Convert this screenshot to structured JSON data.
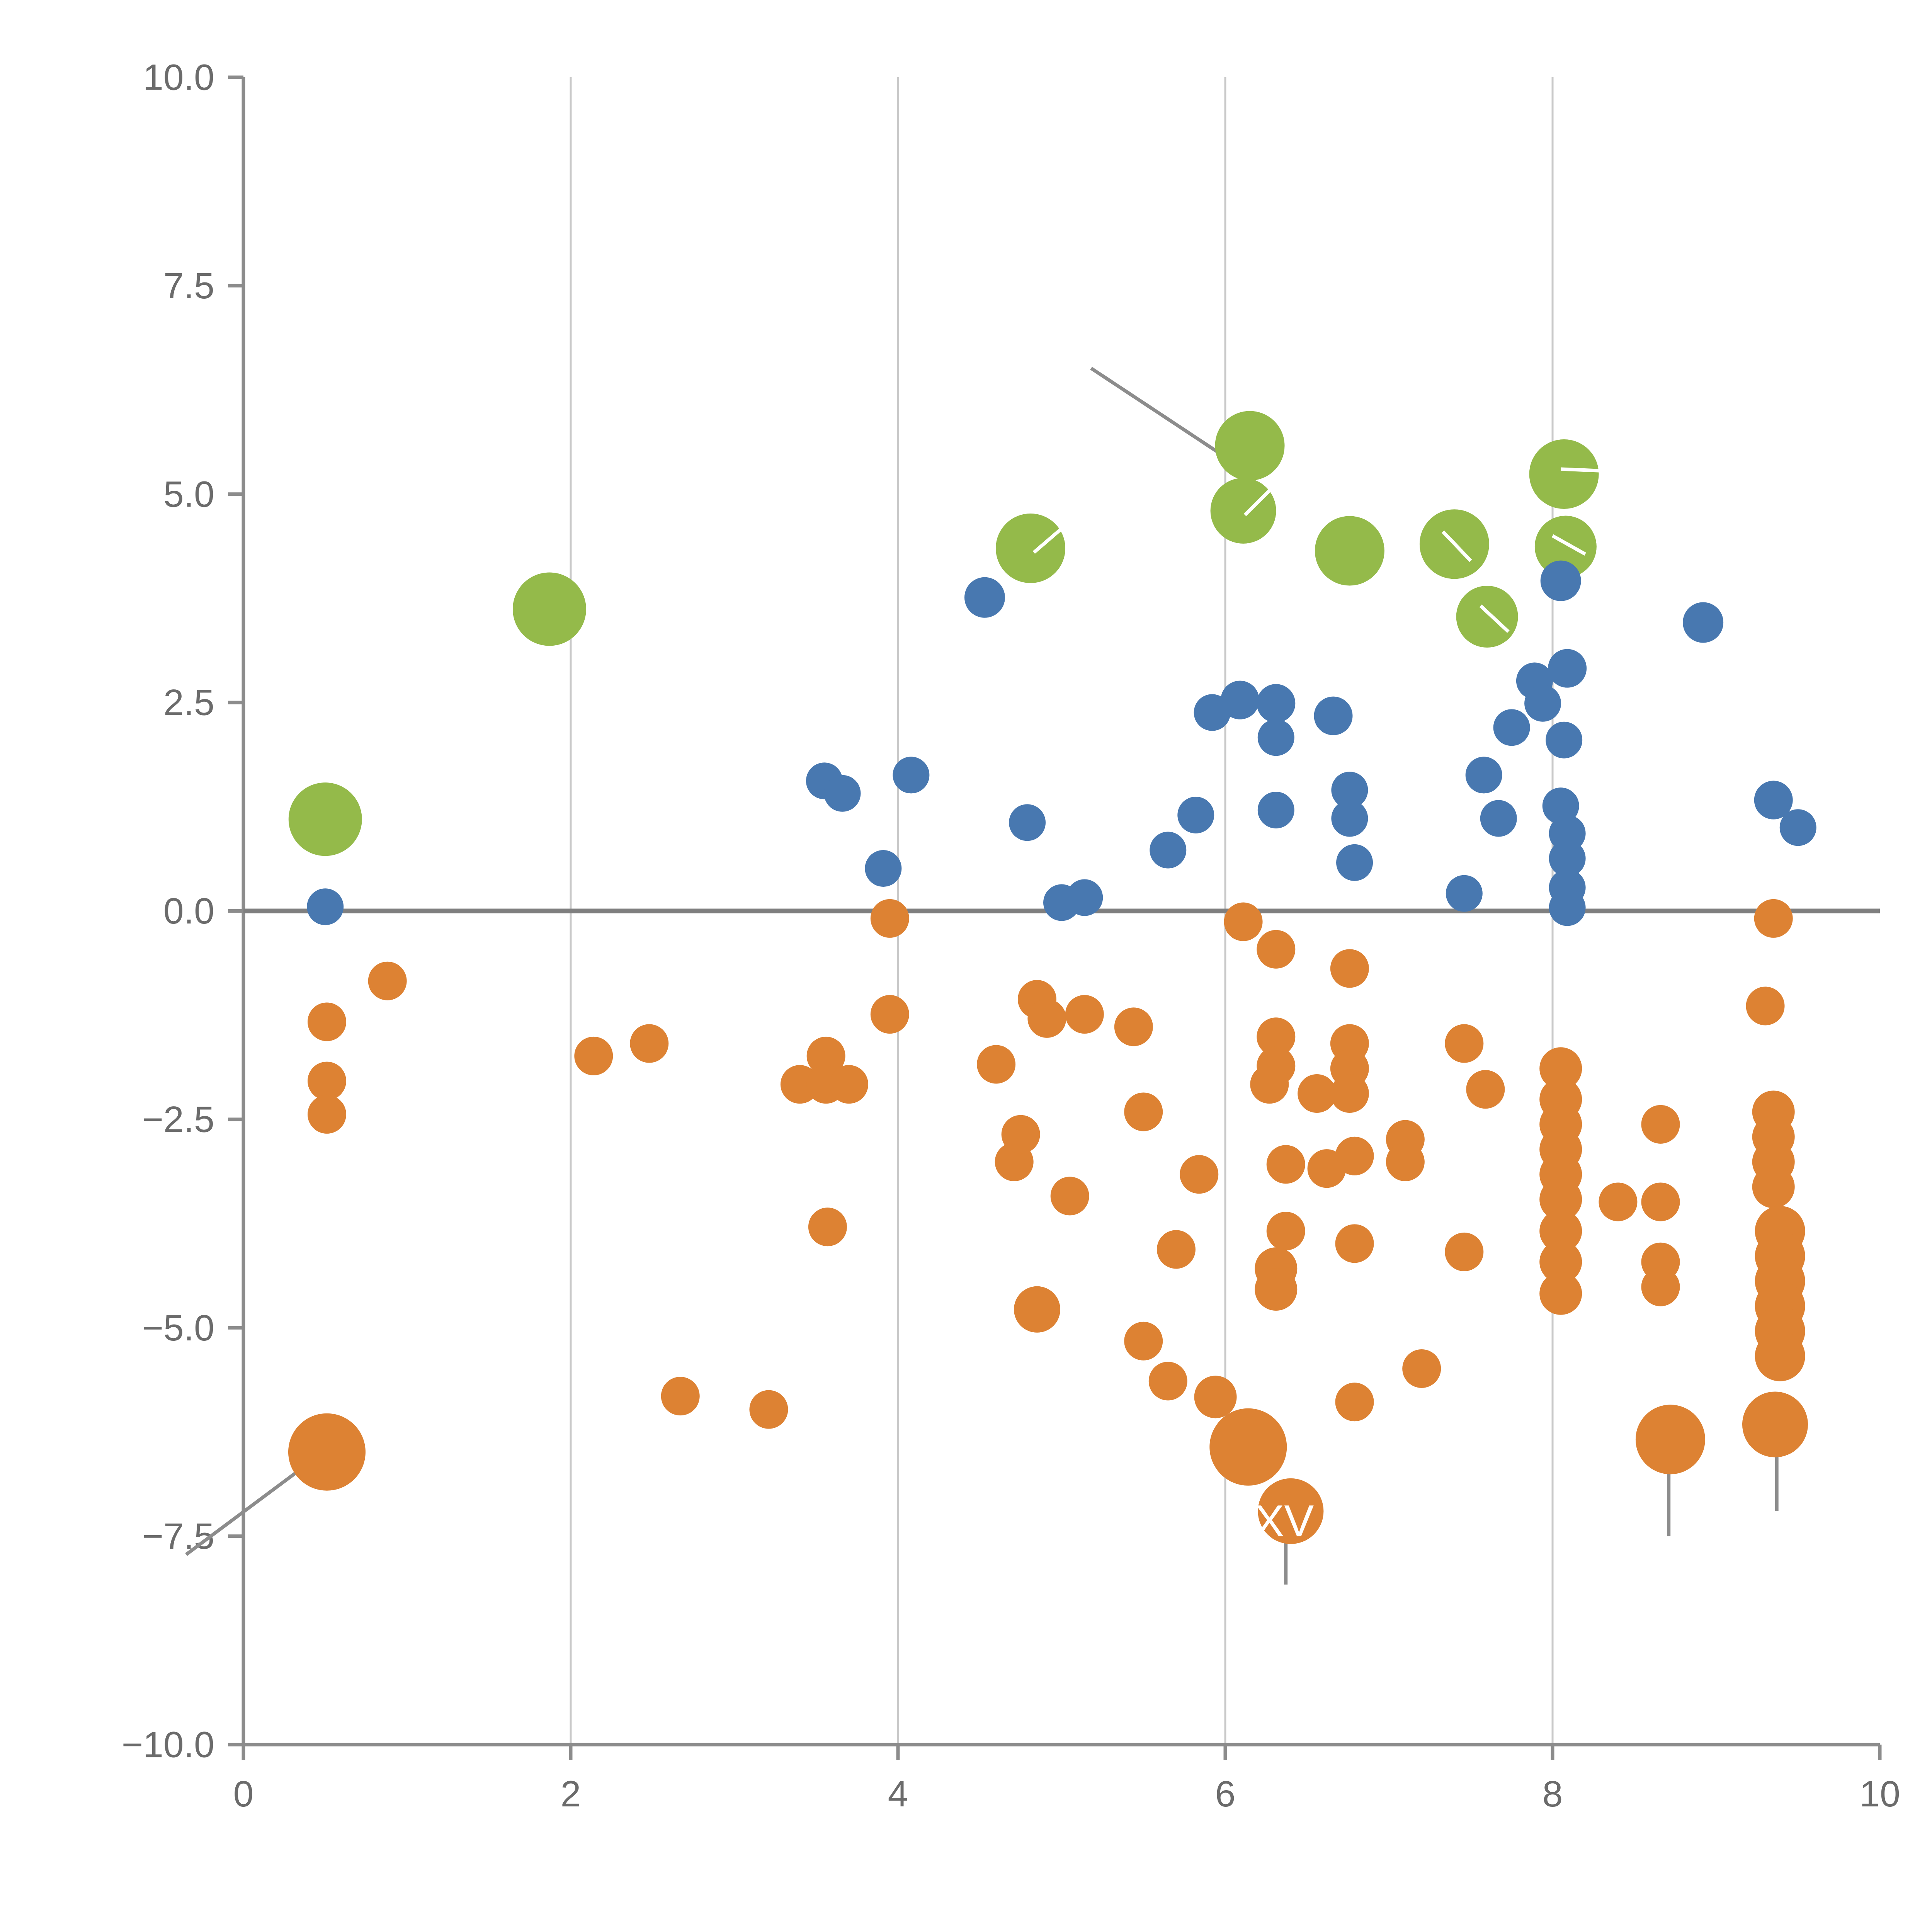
{
  "chart_data": {
    "type": "scatter",
    "title": "",
    "xlabel": "",
    "ylabel": "",
    "xlim": [
      0,
      10
    ],
    "ylim": [
      -10,
      10
    ],
    "grid": "vertical-only",
    "legend": "none",
    "axes": {
      "x_gridlines": [
        2,
        4,
        6,
        8
      ],
      "x_ticks": [
        {
          "value": 0,
          "label": "0"
        },
        {
          "value": 2,
          "label": "2"
        },
        {
          "value": 4,
          "label": "4"
        },
        {
          "value": 6,
          "label": "6"
        },
        {
          "value": 8,
          "label": "8"
        },
        {
          "value": 10,
          "label": "10"
        }
      ],
      "y_ticks": [
        {
          "value": 10,
          "label": "10.0"
        },
        {
          "value": 7.5,
          "label": "7.5"
        },
        {
          "value": 5,
          "label": "5.0"
        },
        {
          "value": 2.5,
          "label": "2.5"
        },
        {
          "value": 0,
          "label": "0.0"
        },
        {
          "value": -2.5,
          "label": "−2.5"
        },
        {
          "value": -5,
          "label": "−5.0"
        },
        {
          "value": -7.5,
          "label": "−7.5"
        },
        {
          "value": -10,
          "label": "−10.0"
        }
      ]
    },
    "style": {
      "background": "#ffffff",
      "grid_color": "#c9c9c9",
      "spine_color": "#8c8c8c",
      "zero_line_color": "#7f7f7f",
      "tick_label_color": "#6b6b6b",
      "annotation_line_color": "#8c8c8c",
      "white_mark_color": "#ffffff"
    },
    "series": [
      {
        "name": "green",
        "color": "#94ba4a",
        "points": [
          [
            0.5,
            1.1,
            19
          ],
          [
            1.87,
            3.62,
            19
          ],
          [
            4.81,
            4.35,
            18
          ],
          [
            6.15,
            5.58,
            18
          ],
          [
            6.11,
            4.8,
            17
          ],
          [
            6.76,
            4.32,
            18
          ],
          [
            7.4,
            4.4,
            18
          ],
          [
            7.6,
            3.53,
            16
          ],
          [
            8.07,
            5.24,
            18
          ],
          [
            8.08,
            4.37,
            16
          ]
        ]
      },
      {
        "name": "blue",
        "color": "#4878b0",
        "points": [
          [
            0.5,
            0.05,
            9.5
          ],
          [
            3.55,
            1.56,
            9.5
          ],
          [
            3.66,
            1.41,
            9.5
          ],
          [
            3.91,
            0.51,
            9.5
          ],
          [
            4.08,
            1.63,
            9.5
          ],
          [
            4.53,
            3.76,
            10.5
          ],
          [
            4.79,
            1.06,
            9.5
          ],
          [
            5.0,
            0.1,
            9.5
          ],
          [
            5.14,
            0.16,
            9.5
          ],
          [
            5.65,
            0.73,
            9.5
          ],
          [
            5.82,
            1.15,
            9.5
          ],
          [
            5.92,
            2.38,
            9.5
          ],
          [
            6.09,
            2.53,
            10
          ],
          [
            6.31,
            2.49,
            10
          ],
          [
            6.31,
            2.08,
            9.5
          ],
          [
            6.31,
            1.21,
            9.5
          ],
          [
            6.66,
            2.34,
            10
          ],
          [
            6.76,
            1.45,
            9.5
          ],
          [
            6.76,
            1.11,
            9.5
          ],
          [
            6.79,
            0.58,
            9.5
          ],
          [
            7.46,
            0.21,
            9.5
          ],
          [
            7.58,
            1.63,
            9.5
          ],
          [
            7.67,
            1.11,
            9.5
          ],
          [
            7.75,
            2.2,
            9.5
          ],
          [
            7.89,
            2.76,
            9.5
          ],
          [
            7.94,
            2.49,
            9.5
          ],
          [
            8.05,
            3.96,
            10.5
          ],
          [
            8.09,
            2.91,
            10
          ],
          [
            8.07,
            2.05,
            9.5
          ],
          [
            8.05,
            1.26,
            9.5
          ],
          [
            8.09,
            0.93,
            9.5
          ],
          [
            8.09,
            0.63,
            9.5
          ],
          [
            8.09,
            0.28,
            9.5
          ],
          [
            8.09,
            0.04,
            9.5
          ],
          [
            8.92,
            3.46,
            10.5
          ],
          [
            9.35,
            1.33,
            10
          ],
          [
            9.5,
            1.0,
            9.5
          ]
        ]
      },
      {
        "name": "orange",
        "color": "#dd8233",
        "points": [
          [
            0.51,
            -6.49,
            20
          ],
          [
            0.51,
            -1.33,
            10
          ],
          [
            0.51,
            -2.04,
            10
          ],
          [
            0.51,
            -2.44,
            10
          ],
          [
            0.88,
            -0.84,
            10
          ],
          [
            2.14,
            -1.74,
            10
          ],
          [
            2.48,
            -1.59,
            10
          ],
          [
            2.67,
            -5.82,
            10
          ],
          [
            3.21,
            -5.98,
            10
          ],
          [
            3.4,
            -2.08,
            10
          ],
          [
            3.56,
            -1.74,
            10
          ],
          [
            3.56,
            -2.08,
            10
          ],
          [
            3.57,
            -3.79,
            10
          ],
          [
            3.7,
            -2.08,
            10
          ],
          [
            3.95,
            -0.09,
            10
          ],
          [
            3.95,
            -1.24,
            10
          ],
          [
            4.6,
            -1.84,
            10
          ],
          [
            4.71,
            -3.01,
            10
          ],
          [
            4.75,
            -2.68,
            10
          ],
          [
            4.85,
            -1.06,
            10
          ],
          [
            4.91,
            -1.29,
            10
          ],
          [
            4.85,
            -4.78,
            12
          ],
          [
            5.05,
            -3.42,
            10
          ],
          [
            5.14,
            -1.24,
            10
          ],
          [
            5.44,
            -1.39,
            10
          ],
          [
            5.5,
            -2.41,
            10
          ],
          [
            5.5,
            -5.16,
            10
          ],
          [
            5.65,
            -5.64,
            10
          ],
          [
            5.7,
            -4.06,
            10
          ],
          [
            5.84,
            -3.16,
            10
          ],
          [
            5.94,
            -5.83,
            11
          ],
          [
            6.11,
            -0.13,
            10
          ],
          [
            6.14,
            -6.43,
            20
          ],
          [
            6.4,
            -7.2,
            17
          ],
          [
            6.31,
            -0.46,
            10
          ],
          [
            6.31,
            -1.51,
            10
          ],
          [
            6.31,
            -1.86,
            10
          ],
          [
            6.27,
            -2.08,
            10
          ],
          [
            6.37,
            -3.04,
            10
          ],
          [
            6.37,
            -3.84,
            10
          ],
          [
            6.31,
            -4.29,
            11
          ],
          [
            6.31,
            -4.54,
            11
          ],
          [
            6.56,
            -2.19,
            10
          ],
          [
            6.62,
            -3.09,
            10
          ],
          [
            6.76,
            -0.69,
            10
          ],
          [
            6.76,
            -1.59,
            10
          ],
          [
            6.76,
            -1.89,
            10
          ],
          [
            6.76,
            -2.19,
            10
          ],
          [
            6.79,
            -2.94,
            10
          ],
          [
            6.79,
            -3.99,
            10
          ],
          [
            6.79,
            -5.89,
            10
          ],
          [
            7.1,
            -2.74,
            10
          ],
          [
            7.1,
            -3.01,
            10
          ],
          [
            7.2,
            -5.49,
            10
          ],
          [
            7.46,
            -1.59,
            10
          ],
          [
            7.46,
            -4.09,
            10
          ],
          [
            7.59,
            -2.14,
            10
          ],
          [
            8.05,
            -1.89,
            11
          ],
          [
            8.05,
            -2.26,
            11
          ],
          [
            8.05,
            -2.56,
            11
          ],
          [
            8.05,
            -2.86,
            11
          ],
          [
            8.05,
            -3.16,
            11
          ],
          [
            8.05,
            -3.46,
            11
          ],
          [
            8.05,
            -3.84,
            11
          ],
          [
            8.05,
            -4.21,
            11
          ],
          [
            8.05,
            -4.59,
            11
          ],
          [
            8.4,
            -3.49,
            10
          ],
          [
            8.66,
            -2.56,
            10
          ],
          [
            8.66,
            -3.49,
            10
          ],
          [
            8.66,
            -4.21,
            10
          ],
          [
            8.66,
            -4.51,
            10
          ],
          [
            8.72,
            -6.34,
            18
          ],
          [
            9.35,
            -0.09,
            10
          ],
          [
            9.3,
            -1.14,
            10
          ],
          [
            9.35,
            -2.41,
            11
          ],
          [
            9.35,
            -2.71,
            11
          ],
          [
            9.35,
            -3.01,
            11
          ],
          [
            9.35,
            -3.31,
            11
          ],
          [
            9.39,
            -3.84,
            13
          ],
          [
            9.39,
            -4.14,
            13
          ],
          [
            9.39,
            -4.44,
            13
          ],
          [
            9.39,
            -4.74,
            13
          ],
          [
            9.39,
            -5.04,
            13
          ],
          [
            9.39,
            -5.34,
            13
          ],
          [
            9.36,
            -6.16,
            17
          ]
        ]
      }
    ],
    "annotations": {
      "leader_lines": [
        [
          5.18,
          6.51,
          6.05,
          5.38
        ],
        [
          0.45,
          -6.55,
          -0.35,
          -7.72
        ],
        [
          6.37,
          -7.56,
          6.37,
          -8.08
        ],
        [
          8.71,
          -6.6,
          8.71,
          -7.5
        ],
        [
          9.37,
          -6.4,
          9.37,
          -7.2
        ]
      ],
      "white_marks": [
        [
          4.83,
          4.3,
          5.02,
          4.62
        ],
        [
          6.12,
          4.75,
          6.3,
          5.1
        ],
        [
          7.33,
          4.55,
          7.5,
          4.2
        ],
        [
          7.56,
          3.66,
          7.73,
          3.35
        ],
        [
          8.05,
          5.3,
          8.3,
          5.28
        ],
        [
          8.0,
          4.5,
          8.2,
          4.28
        ]
      ],
      "labels": [
        {
          "text": "XV",
          "x": 6.36,
          "y": -7.5,
          "size": 23,
          "color": "#ffffff"
        }
      ]
    }
  }
}
